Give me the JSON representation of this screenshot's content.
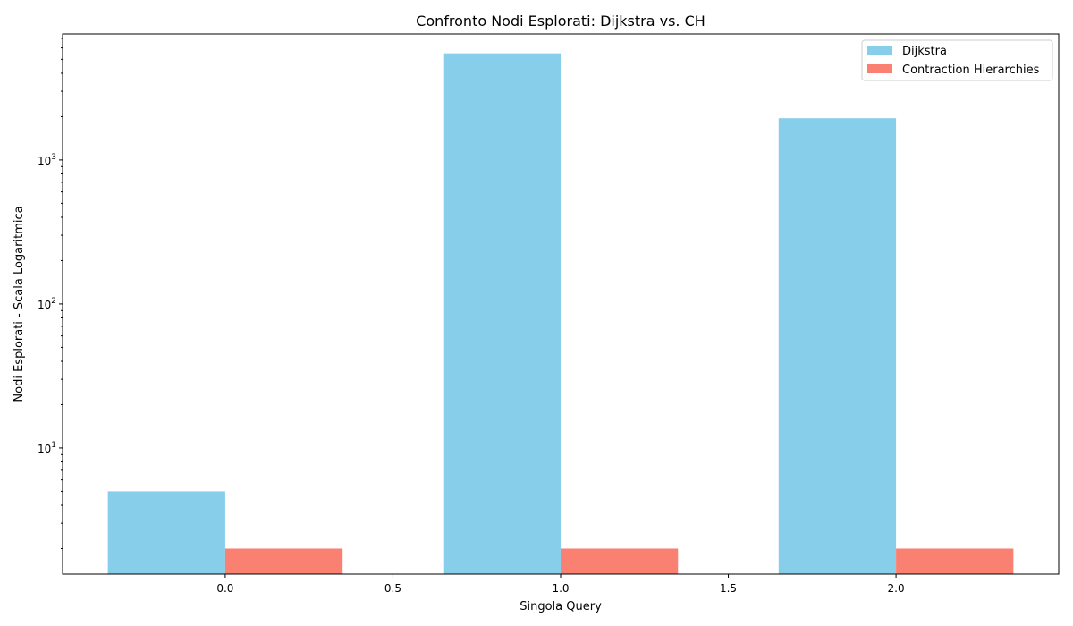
{
  "chart_data": {
    "type": "bar",
    "title": "Confronto Nodi Esplorati: Dijkstra vs. CH",
    "xlabel": "Singola Query",
    "ylabel": "Nodi Esplorati - Scala Logaritmica",
    "x": [
      0,
      1,
      2
    ],
    "xticks": [
      "0.0",
      "0.5",
      "1.0",
      "1.5",
      "2.0"
    ],
    "xtick_values": [
      0,
      0.5,
      1,
      1.5,
      2
    ],
    "xlim": [
      -0.485,
      2.485
    ],
    "ylim": [
      1.33,
      7500
    ],
    "yscale": "log",
    "yticks": [
      {
        "value": 10,
        "base": "10",
        "exp": "1"
      },
      {
        "value": 100,
        "base": "10",
        "exp": "2"
      },
      {
        "value": 1000,
        "base": "10",
        "exp": "3"
      }
    ],
    "bar_width": 0.35,
    "series": [
      {
        "name": "Dijkstra",
        "values": [
          5,
          5500,
          1950
        ],
        "color": "#87ceeb",
        "offset": -0.175
      },
      {
        "name": "Contraction Hierarchies",
        "values": [
          2,
          2,
          2
        ],
        "color": "#fa8072",
        "offset": 0.175
      }
    ],
    "legend_position": "top-right",
    "grid": false
  }
}
